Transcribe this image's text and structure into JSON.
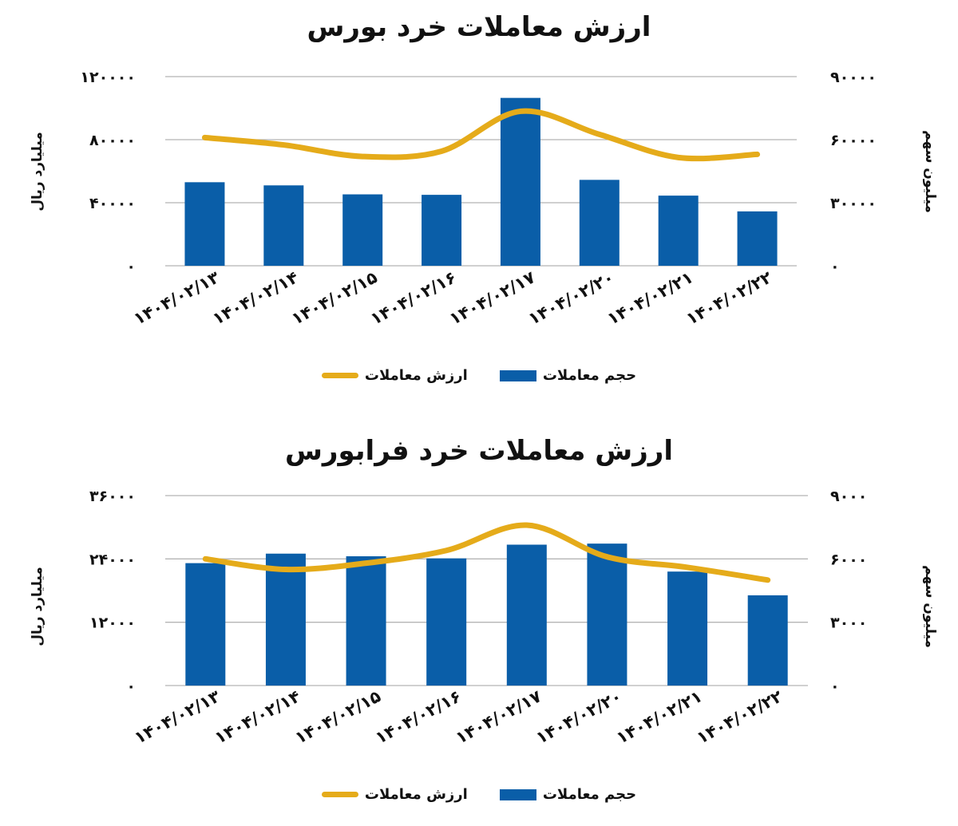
{
  "colors": {
    "bar": "#0a5ea8",
    "line": "#e5ab1a",
    "grid": "#b5b5b5"
  },
  "chart_data": [
    {
      "type": "bar",
      "title": "ارزش معاملات خرد بورس",
      "categories": [
        "1404/02/13",
        "1404/02/14",
        "1404/02/15",
        "1404/02/16",
        "1404/02/17",
        "1404/02/20",
        "1404/02/21",
        "1404/02/22"
      ],
      "left_ylabel": "میلیارد ریال",
      "right_ylabel": "میلیون سهم",
      "left_ylim": [
        0,
        120000
      ],
      "right_ylim": [
        0,
        90000
      ],
      "left_ticks": [
        "۰",
        "۴۰۰۰۰",
        "۸۰۰۰۰",
        "۱۲۰۰۰۰"
      ],
      "right_ticks": [
        "۰",
        "۳۰۰۰۰",
        "۶۰۰۰۰",
        "۹۰۰۰۰"
      ],
      "grid": true,
      "series": [
        {
          "name": "حجم معاملات",
          "type": "bar",
          "axis": "left",
          "values": [
            53000,
            51000,
            45300,
            45000,
            106500,
            54500,
            44500,
            34500
          ]
        },
        {
          "name": "ارزش معاملات",
          "type": "line",
          "axis": "right",
          "values": [
            61000,
            57500,
            52000,
            54500,
            73500,
            62500,
            51500,
            53000
          ]
        }
      ],
      "legend_position": "bottom"
    },
    {
      "type": "bar",
      "title": "ارزش معاملات خرد فرابورس",
      "categories": [
        "1404/02/13",
        "1404/02/14",
        "1404/02/15",
        "1404/02/16",
        "1404/02/17",
        "1404/02/20",
        "1404/02/21",
        "1404/02/22"
      ],
      "left_ylabel": "میلیارد ریال",
      "right_ylabel": "میلیون سهم",
      "left_ylim": [
        0,
        36000
      ],
      "right_ylim": [
        0,
        9000
      ],
      "left_ticks": [
        "۰",
        "۱۲۰۰۰",
        "۲۴۰۰۰",
        "۳۶۰۰۰"
      ],
      "right_ticks": [
        "۰",
        "۳۰۰۰",
        "۶۰۰۰",
        "۹۰۰۰"
      ],
      "grid": true,
      "series": [
        {
          "name": "حجم معاملات",
          "type": "bar",
          "axis": "left",
          "values": [
            23200,
            25000,
            24500,
            24100,
            26700,
            26900,
            21600,
            17100
          ]
        },
        {
          "name": "ارزش معاملات",
          "type": "line",
          "axis": "right",
          "values": [
            6000,
            5500,
            5800,
            6400,
            7600,
            6100,
            5600,
            5000
          ]
        }
      ],
      "legend_position": "bottom"
    }
  ]
}
